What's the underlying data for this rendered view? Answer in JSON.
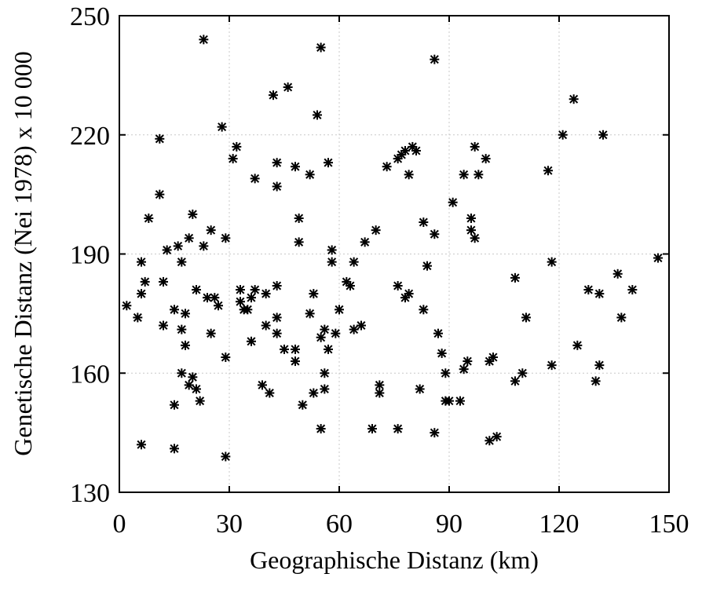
{
  "chart_data": {
    "type": "scatter",
    "title": "",
    "xlabel": "Geographische Distanz (km)",
    "ylabel": "Genetische Distanz (Nei 1978) x 10 000",
    "xlim": [
      0,
      150
    ],
    "ylim": [
      130,
      250
    ],
    "xticks": [
      "0",
      "30",
      "60",
      "90",
      "120",
      "150"
    ],
    "yticks": [
      "130",
      "160",
      "190",
      "220",
      "250"
    ],
    "xtick_values": [
      0,
      30,
      60,
      90,
      120,
      150
    ],
    "ytick_values": [
      130,
      160,
      190,
      220,
      250
    ],
    "grid": true,
    "marker": "asterisk",
    "points": [
      [
        2,
        177
      ],
      [
        5,
        174
      ],
      [
        6,
        188
      ],
      [
        6,
        180
      ],
      [
        7,
        183
      ],
      [
        8,
        199
      ],
      [
        6,
        142
      ],
      [
        11,
        205
      ],
      [
        11,
        219
      ],
      [
        12,
        183
      ],
      [
        12,
        172
      ],
      [
        13,
        191
      ],
      [
        15,
        176
      ],
      [
        15,
        152
      ],
      [
        15,
        141
      ],
      [
        16,
        192
      ],
      [
        17,
        188
      ],
      [
        17,
        171
      ],
      [
        17,
        160
      ],
      [
        18,
        175
      ],
      [
        18,
        167
      ],
      [
        19,
        194
      ],
      [
        19,
        157
      ],
      [
        20,
        200
      ],
      [
        20,
        159
      ],
      [
        21,
        181
      ],
      [
        21,
        156
      ],
      [
        22,
        153
      ],
      [
        23,
        192
      ],
      [
        23,
        244
      ],
      [
        24,
        179
      ],
      [
        25,
        196
      ],
      [
        25,
        170
      ],
      [
        26,
        179
      ],
      [
        27,
        177
      ],
      [
        28,
        222
      ],
      [
        29,
        194
      ],
      [
        29,
        164
      ],
      [
        29,
        139
      ],
      [
        31,
        214
      ],
      [
        32,
        217
      ],
      [
        33,
        181
      ],
      [
        33,
        178
      ],
      [
        34,
        176
      ],
      [
        35,
        176
      ],
      [
        36,
        179
      ],
      [
        36,
        168
      ],
      [
        37,
        181
      ],
      [
        37,
        209
      ],
      [
        39,
        157
      ],
      [
        40,
        172
      ],
      [
        40,
        180
      ],
      [
        41,
        155
      ],
      [
        42,
        230
      ],
      [
        43,
        207
      ],
      [
        43,
        213
      ],
      [
        43,
        182
      ],
      [
        43,
        174
      ],
      [
        43,
        170
      ],
      [
        45,
        166
      ],
      [
        46,
        232
      ],
      [
        48,
        212
      ],
      [
        48,
        163
      ],
      [
        48,
        166
      ],
      [
        49,
        199
      ],
      [
        49,
        193
      ],
      [
        50,
        152
      ],
      [
        52,
        210
      ],
      [
        52,
        175
      ],
      [
        53,
        180
      ],
      [
        53,
        155
      ],
      [
        54,
        225
      ],
      [
        55,
        242
      ],
      [
        55,
        169
      ],
      [
        55,
        146
      ],
      [
        56,
        171
      ],
      [
        56,
        160
      ],
      [
        56,
        156
      ],
      [
        57,
        213
      ],
      [
        57,
        166
      ],
      [
        58,
        188
      ],
      [
        58,
        191
      ],
      [
        59,
        170
      ],
      [
        60,
        176
      ],
      [
        62,
        183
      ],
      [
        63,
        182
      ],
      [
        64,
        188
      ],
      [
        64,
        171
      ],
      [
        66,
        172
      ],
      [
        67,
        193
      ],
      [
        69,
        146
      ],
      [
        70,
        196
      ],
      [
        71,
        157
      ],
      [
        71,
        155
      ],
      [
        73,
        212
      ],
      [
        76,
        214
      ],
      [
        76,
        182
      ],
      [
        76,
        146
      ],
      [
        77,
        215
      ],
      [
        78,
        179
      ],
      [
        78,
        216
      ],
      [
        79,
        210
      ],
      [
        79,
        180
      ],
      [
        80,
        217
      ],
      [
        81,
        216
      ],
      [
        82,
        156
      ],
      [
        83,
        176
      ],
      [
        83,
        198
      ],
      [
        84,
        187
      ],
      [
        86,
        239
      ],
      [
        86,
        195
      ],
      [
        86,
        145
      ],
      [
        87,
        170
      ],
      [
        88,
        165
      ],
      [
        89,
        153
      ],
      [
        89,
        160
      ],
      [
        90,
        153
      ],
      [
        91,
        203
      ],
      [
        93,
        153
      ],
      [
        94,
        210
      ],
      [
        94,
        161
      ],
      [
        95,
        163
      ],
      [
        96,
        199
      ],
      [
        96,
        196
      ],
      [
        97,
        217
      ],
      [
        97,
        194
      ],
      [
        98,
        210
      ],
      [
        100,
        214
      ],
      [
        101,
        163
      ],
      [
        102,
        164
      ],
      [
        101,
        143
      ],
      [
        103,
        144
      ],
      [
        108,
        184
      ],
      [
        108,
        158
      ],
      [
        110,
        160
      ],
      [
        111,
        174
      ],
      [
        117,
        211
      ],
      [
        118,
        188
      ],
      [
        118,
        162
      ],
      [
        121,
        220
      ],
      [
        124,
        229
      ],
      [
        125,
        167
      ],
      [
        128,
        181
      ],
      [
        130,
        158
      ],
      [
        131,
        180
      ],
      [
        131,
        162
      ],
      [
        132,
        220
      ],
      [
        136,
        185
      ],
      [
        137,
        174
      ],
      [
        140,
        181
      ],
      [
        147,
        189
      ]
    ]
  }
}
